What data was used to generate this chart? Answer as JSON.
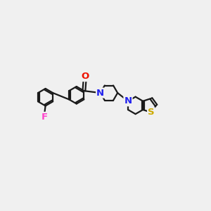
{
  "background_color": "#f0f0f0",
  "bond_color": "#1a1a1a",
  "bond_width": 1.6,
  "atom_colors": {
    "O": "#ee1100",
    "N": "#2222ee",
    "F": "#ff44cc",
    "S": "#ccaa00"
  },
  "font_size_atom": 9.5,
  "figsize": [
    3.0,
    3.0
  ],
  "dpi": 100
}
